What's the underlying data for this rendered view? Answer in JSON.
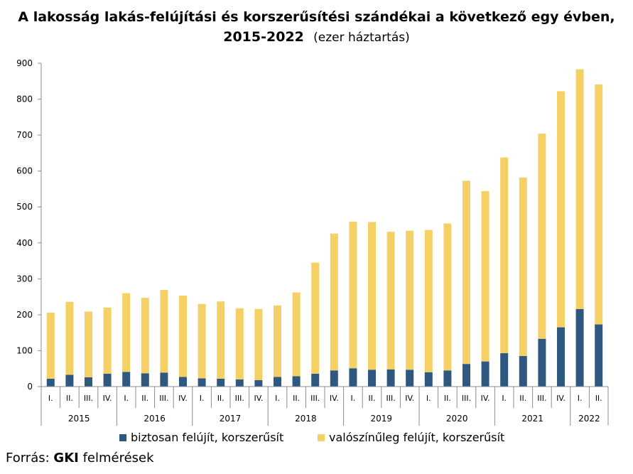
{
  "title_main_line1": "A lakosság lakás-felújítási és korszerűsítési szándékai a következő egy évben,",
  "title_main_line2": "2015-2022",
  "title_unit": "(ezer háztartás)",
  "source_prefix": "Forrás:",
  "source_org": "GKI",
  "source_suffix": "felmérések",
  "chart_data": {
    "type": "bar",
    "stacked": true,
    "categories": [
      "I.",
      "II.",
      "III.",
      "IV.",
      "I.",
      "II.",
      "III.",
      "IV.",
      "I.",
      "II.",
      "III.",
      "IV.",
      "I.",
      "II.",
      "III.",
      "IV.",
      "I.",
      "II.",
      "III.",
      "IV.",
      "I.",
      "II.",
      "III.",
      "IV.",
      "I.",
      "II.",
      "III.",
      "IV.",
      "I.",
      "II."
    ],
    "years": [
      {
        "label": "2015",
        "count": 4
      },
      {
        "label": "2016",
        "count": 4
      },
      {
        "label": "2017",
        "count": 4
      },
      {
        "label": "2018",
        "count": 4
      },
      {
        "label": "2019",
        "count": 4
      },
      {
        "label": "2020",
        "count": 4
      },
      {
        "label": "2021",
        "count": 4
      },
      {
        "label": "2022",
        "count": 2
      }
    ],
    "series": [
      {
        "name": "biztosan felújít, korszerűsít",
        "color": "#2e5880",
        "values": [
          22,
          33,
          26,
          36,
          41,
          37,
          39,
          27,
          23,
          22,
          20,
          18,
          27,
          29,
          36,
          45,
          51,
          47,
          48,
          47,
          40,
          45,
          63,
          70,
          93,
          85,
          133,
          165,
          216,
          173
        ]
      },
      {
        "name": "valószínűleg felújít, korszerűsít",
        "color": "#f5d165",
        "values": [
          184,
          203,
          183,
          184,
          219,
          210,
          230,
          226,
          207,
          215,
          198,
          198,
          199,
          233,
          309,
          381,
          408,
          411,
          383,
          387,
          396,
          409,
          510,
          474,
          545,
          497,
          571,
          657,
          667,
          668
        ]
      }
    ],
    "ylim": [
      0,
      900
    ],
    "yticks": [
      0,
      100,
      200,
      300,
      400,
      500,
      600,
      700,
      800,
      900
    ],
    "legend_position": "bottom",
    "grid": false
  }
}
